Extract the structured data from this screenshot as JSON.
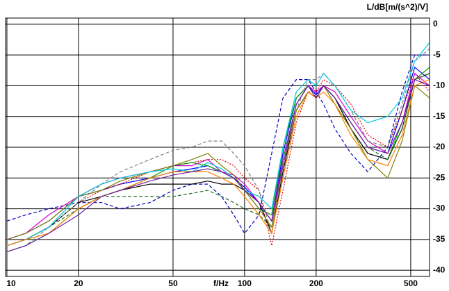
{
  "chart_data": {
    "type": "line",
    "xlabel": "f/Hz",
    "ylabel": "L/dB[m/(s^2)/V]",
    "xscale": "log",
    "grid": true,
    "x": [
      10,
      12,
      15,
      20,
      25,
      30,
      40,
      50,
      60,
      70,
      80,
      90,
      100,
      115,
      130,
      145,
      165,
      185,
      200,
      215,
      240,
      280,
      330,
      400,
      460,
      520,
      600
    ],
    "xlim": [
      9.87,
      600
    ],
    "xticks": [
      10,
      20,
      50,
      100,
      200,
      500
    ],
    "ylim": [
      -41,
      1
    ],
    "yticks": [
      0,
      -5,
      -10,
      -15,
      -20,
      -25,
      -30,
      -35,
      -40
    ],
    "series": [
      {
        "color": "#0000ff",
        "style": "solid",
        "values": [
          -35,
          -34,
          -32,
          -28,
          -27,
          -26,
          -25,
          -24,
          -23.5,
          -23,
          -24,
          -25,
          -26.5,
          -29,
          -32,
          -21,
          -12,
          -10,
          -11.5,
          -10,
          -12,
          -16,
          -20,
          -21,
          -14,
          -7,
          -9
        ]
      },
      {
        "color": "#e00000",
        "style": "dotted",
        "values": [
          -36,
          -35,
          -33,
          -29,
          -27,
          -26,
          -24,
          -23,
          -22.5,
          -22,
          -22,
          -23,
          -25,
          -27,
          -36,
          -27,
          -16,
          -11,
          -11,
          -9,
          -10,
          -13,
          -18,
          -20,
          -14,
          -8,
          -11
        ]
      },
      {
        "color": "#00a000",
        "style": "solid",
        "values": [
          -37,
          -36,
          -34,
          -30,
          -28,
          -27,
          -25,
          -23,
          -22.5,
          -23,
          -24,
          -25,
          -27,
          -30,
          -31,
          -20,
          -12,
          -10,
          -12,
          -10,
          -12,
          -17,
          -21,
          -22,
          -16,
          -9,
          -7
        ]
      },
      {
        "color": "#0000c0",
        "style": "dashed",
        "values": [
          -32,
          -31,
          -30,
          -29,
          -29,
          -30,
          -29,
          -27,
          -26,
          -26,
          -28,
          -31,
          -34,
          -31,
          -21,
          -12,
          -9,
          -9,
          -11,
          -13,
          -17,
          -21,
          -24,
          -20,
          -11,
          -5,
          -5
        ]
      },
      {
        "color": "#000000",
        "style": "solid",
        "values": [
          -36,
          -35,
          -33,
          -29,
          -28,
          -27,
          -26,
          -26,
          -26,
          -25.5,
          -26,
          -26,
          -27,
          -29,
          -34,
          -24,
          -14,
          -11,
          -12,
          -10,
          -12,
          -17,
          -21,
          -22,
          -17,
          -9,
          -8
        ]
      },
      {
        "color": "#d000d0",
        "style": "solid",
        "values": [
          -35,
          -34,
          -31,
          -28,
          -26,
          -25,
          -24,
          -23,
          -23,
          -22,
          -24,
          -24.5,
          -26,
          -29,
          -32,
          -22,
          -13,
          -10,
          -11,
          -10,
          -11,
          -15,
          -19,
          -21,
          -16,
          -8,
          -10
        ]
      },
      {
        "color": "#808080",
        "style": "dashed",
        "values": [
          -37,
          -36,
          -33,
          -29,
          -26,
          -24,
          -22,
          -20.5,
          -20,
          -19,
          -19,
          -21,
          -23,
          -27,
          -34,
          -25,
          -14,
          -9,
          -9,
          -8,
          -10,
          -14,
          -19,
          -20,
          -13,
          -6,
          -4
        ]
      },
      {
        "color": "#207020",
        "style": "dashed",
        "values": [
          -36,
          -35,
          -33,
          -30,
          -28,
          -28,
          -28,
          -28,
          -27.5,
          -27,
          -28,
          -29,
          -30,
          -31,
          -33,
          -22,
          -13,
          -10,
          -12,
          -10,
          -12,
          -16,
          -20,
          -22,
          -17,
          -9,
          -8
        ]
      },
      {
        "color": "#808000",
        "style": "solid",
        "values": [
          -35,
          -34,
          -32,
          -28,
          -27,
          -25.5,
          -24,
          -23,
          -22,
          -21,
          -23,
          -24.5,
          -27,
          -30,
          -33,
          -23,
          -14,
          -11,
          -12,
          -10,
          -13,
          -17,
          -22,
          -25,
          -19,
          -10,
          -12
        ]
      },
      {
        "color": "#00c8e0",
        "style": "solid",
        "values": [
          -36,
          -35,
          -33,
          -28,
          -26,
          -25,
          -24,
          -23.5,
          -24,
          -22.5,
          -23.5,
          -25,
          -27,
          -28,
          -30,
          -20,
          -11,
          -9,
          -10,
          -8,
          -10,
          -14,
          -16,
          -15,
          -12,
          -6,
          -3
        ]
      },
      {
        "color": "#ff8000",
        "style": "solid",
        "values": [
          -36,
          -35,
          -34,
          -30,
          -28,
          -27,
          -25,
          -24,
          -24,
          -24,
          -25,
          -26,
          -28,
          -31,
          -34,
          -25,
          -15,
          -11,
          -12,
          -11,
          -13,
          -18,
          -22,
          -23,
          -18,
          -10,
          -9
        ]
      },
      {
        "color": "#7020a0",
        "style": "solid",
        "values": [
          -37,
          -36,
          -34,
          -31,
          -28,
          -27,
          -25.5,
          -24.5,
          -24,
          -23.5,
          -24,
          -25,
          -27,
          -29,
          -32,
          -23,
          -13,
          -10,
          -12,
          -10,
          -12,
          -16,
          -20,
          -21,
          -16,
          -9,
          -10
        ]
      }
    ]
  }
}
